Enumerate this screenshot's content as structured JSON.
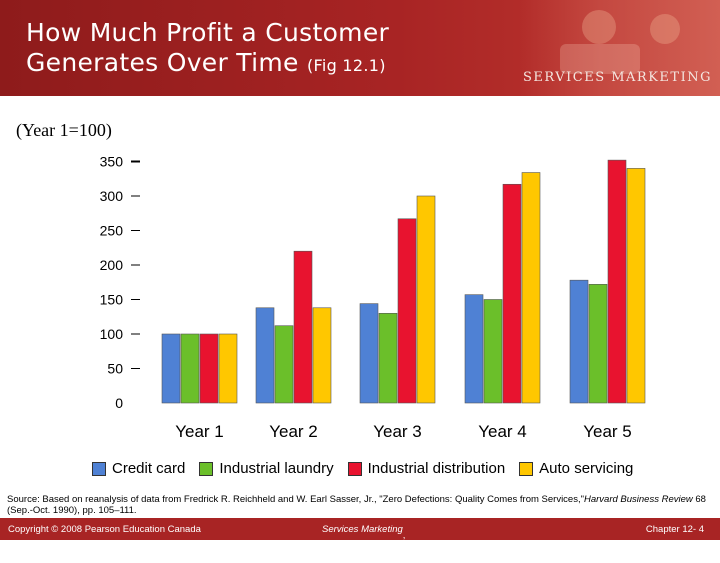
{
  "header": {
    "title_line1": "How Much Profit a Customer",
    "title_line2": "Generates Over Time",
    "title_fig": "(Fig 12.1)",
    "brand": "SERVICES MARKETING"
  },
  "subtitle": "(Year 1=100)",
  "colors": {
    "header_bg": "#a82424",
    "credit_card": "#4f81d4",
    "industrial_laundry": "#6bbf2a",
    "industrial_distribution": "#e8132f",
    "auto_servicing": "#ffc700"
  },
  "chart_data": {
    "type": "bar",
    "categories": [
      "Year 1",
      "Year 2",
      "Year 3",
      "Year 4",
      "Year 5"
    ],
    "series": [
      {
        "name": "Credit card",
        "values": [
          100,
          138,
          144,
          157,
          178
        ]
      },
      {
        "name": "Industrial laundry",
        "values": [
          100,
          112,
          130,
          150,
          172
        ]
      },
      {
        "name": "Industrial distribution",
        "values": [
          100,
          220,
          267,
          317,
          352
        ]
      },
      {
        "name": "Auto servicing",
        "values": [
          100,
          138,
          300,
          334,
          340
        ]
      }
    ],
    "yticks": [
      "350",
      "300",
      "250",
      "200",
      "150",
      "100",
      "50",
      "0"
    ],
    "ylim": [
      0,
      350
    ],
    "grid": false,
    "legend_position": "bottom"
  },
  "source": {
    "text": "Source: Based on reanalysis of data from Fredrick R. Reichheld and W. Earl Sasser, Jr., \"Zero Defections: Quality Comes from Services,\"",
    "journal": "Harvard Business Review",
    "tail": " 68 (Sep.-Oct. 1990), pp. 105–111."
  },
  "footer": {
    "left": "Copyright © 2008 Pearson Education Canada",
    "mid_italic": "Services Marketing",
    "mid_rest": ", Canadian Edition",
    "right": "Chapter 12- 4"
  }
}
